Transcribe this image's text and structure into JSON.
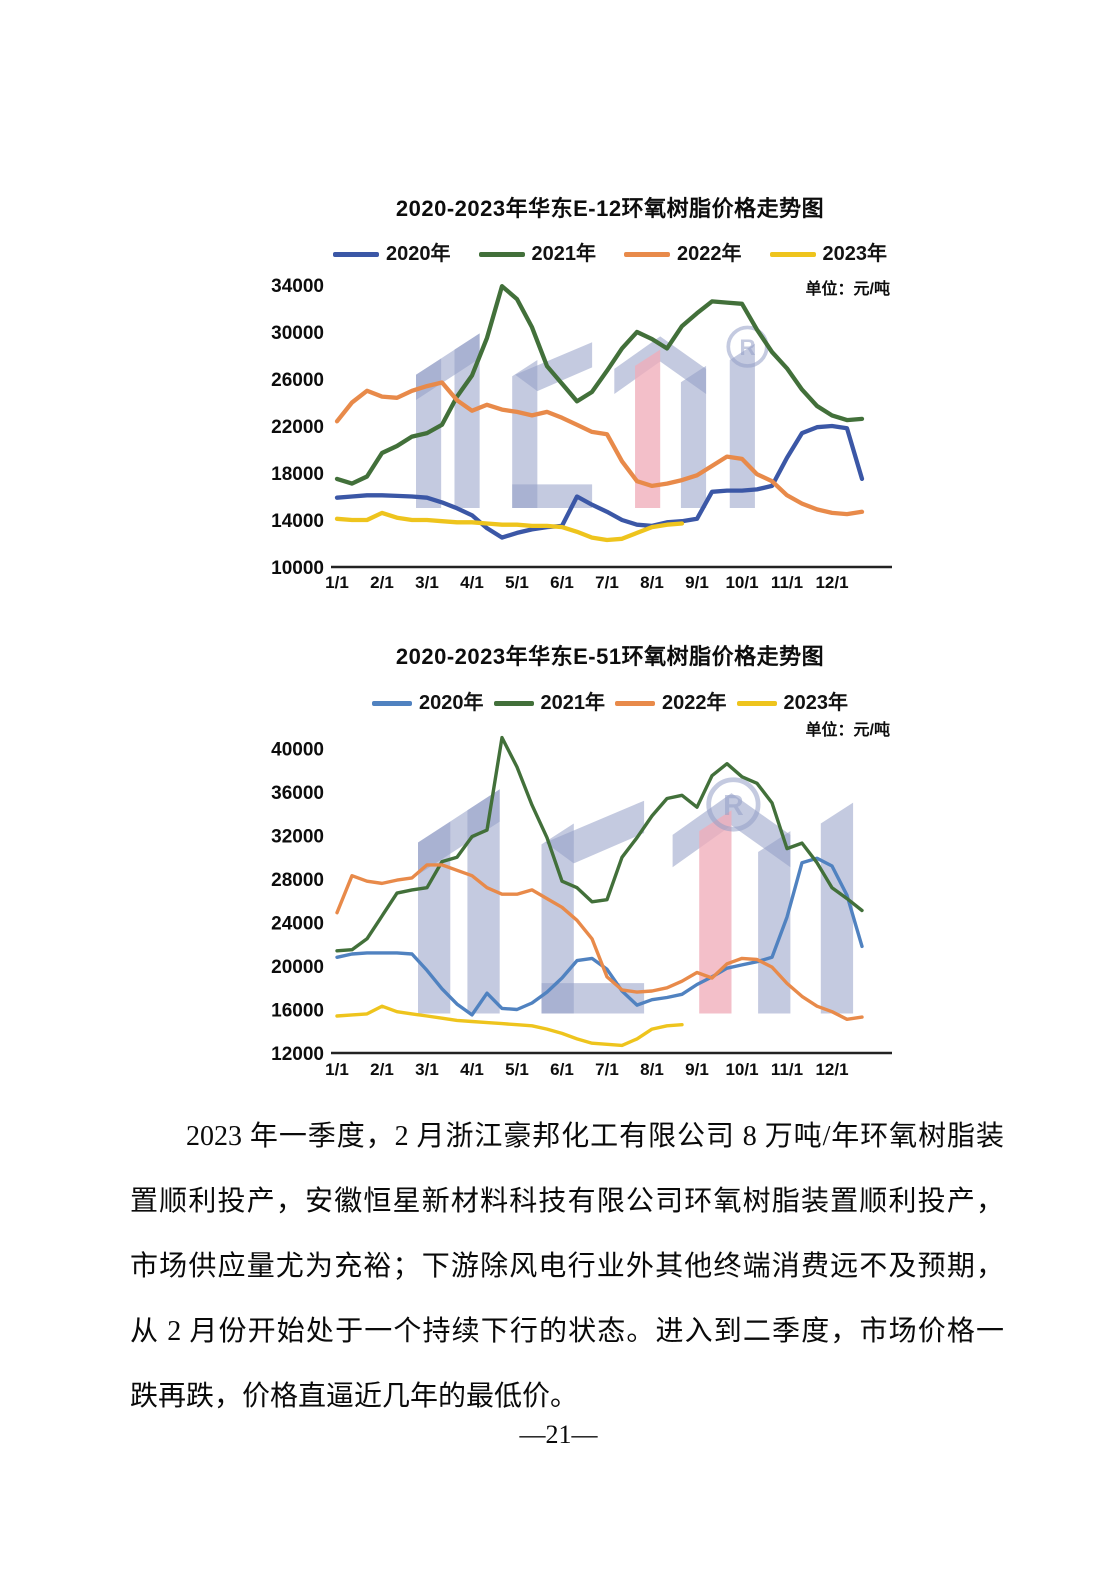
{
  "page": {
    "number_label": "—21—"
  },
  "paragraph": {
    "lines": [
      "2023 年一季度，2 月浙江豪邦化工有限公司 8 万吨/年环氧树脂装",
      "置顺利投产，安徽恒星新材料科技有限公司环氧树脂装置顺利投产，",
      "市场供应量尤为充裕；下游除风电行业外其他终端消费远不及预期，",
      "从 2 月份开始处于一个持续下行的状态。进入到二季度，市场价格一",
      "跌再跌，价格直逼近几年的最低价。"
    ]
  },
  "watermark": {
    "registered_mark": "®"
  },
  "chart_data": [
    {
      "type": "line",
      "title": "2020-2023年华东E-12环氧树脂价格走势图",
      "unit_label": "单位：元/吨",
      "legend_position": "top",
      "grid": false,
      "x_tick_labels": [
        "1/1",
        "2/1",
        "3/1",
        "4/1",
        "5/1",
        "6/1",
        "7/1",
        "8/1",
        "9/1",
        "10/1",
        "11/1",
        "12/1"
      ],
      "y_ticks": [
        10000,
        14000,
        18000,
        22000,
        26000,
        30000,
        34000
      ],
      "ylim": [
        10000,
        35200
      ],
      "points_per_month": 3,
      "series": [
        {
          "name": "2020年",
          "color": "#3b57a6",
          "values": [
            15900,
            16000,
            16100,
            16100,
            16050,
            16000,
            15900,
            15500,
            15000,
            14400,
            13300,
            12500,
            12900,
            13200,
            13400,
            13500,
            16000,
            15300,
            14700,
            14000,
            13600,
            13500,
            13800,
            13900,
            14100,
            16400,
            16500,
            16500,
            16600,
            16900,
            19300,
            21400,
            21900,
            22000,
            21800,
            17500
          ]
        },
        {
          "name": "2021年",
          "color": "#42703a",
          "values": [
            17500,
            17100,
            17700,
            19700,
            20300,
            21100,
            21400,
            22100,
            24500,
            26300,
            29500,
            33900,
            32800,
            30400,
            27100,
            25600,
            24100,
            24900,
            26700,
            28600,
            30000,
            29400,
            28600,
            30500,
            31600,
            32600,
            32500,
            32400,
            30200,
            28300,
            26900,
            25100,
            23700,
            22900,
            22500,
            22600
          ]
        },
        {
          "name": "2022年",
          "color": "#e88a4a",
          "values": [
            22400,
            24000,
            25000,
            24500,
            24400,
            25000,
            25400,
            25700,
            24200,
            23300,
            23800,
            23400,
            23200,
            22900,
            23200,
            22700,
            22100,
            21500,
            21300,
            19000,
            17300,
            16900,
            17100,
            17400,
            17800,
            18600,
            19400,
            19200,
            17900,
            17300,
            16100,
            15400,
            14900,
            14600,
            14500,
            14700
          ]
        },
        {
          "name": "2023年",
          "color": "#eec41d",
          "values": [
            14100,
            14000,
            14000,
            14600,
            14200,
            14000,
            14000,
            13900,
            13800,
            13800,
            13700,
            13600,
            13600,
            13500,
            13500,
            13400,
            13000,
            12500,
            12300,
            12400,
            12900,
            13400,
            13600,
            13700
          ]
        }
      ]
    },
    {
      "type": "line",
      "title": "2020-2023年华东E-51环氧树脂价格走势图",
      "unit_label": "单位：元/吨",
      "legend_position": "top",
      "grid": false,
      "x_tick_labels": [
        "1/1",
        "2/1",
        "3/1",
        "4/1",
        "5/1",
        "6/1",
        "7/1",
        "8/1",
        "9/1",
        "10/1",
        "11/1",
        "12/1"
      ],
      "y_ticks": [
        12000,
        16000,
        20000,
        24000,
        28000,
        32000,
        36000,
        40000
      ],
      "ylim": [
        12000,
        41800
      ],
      "points_per_month": 3,
      "series": [
        {
          "name": "2020年",
          "color": "#5082c0",
          "values": [
            20800,
            21100,
            21200,
            21200,
            21200,
            21100,
            19600,
            17900,
            16500,
            15500,
            17500,
            16100,
            16000,
            16600,
            17600,
            18900,
            20500,
            20700,
            19700,
            17700,
            16400,
            16900,
            17100,
            17400,
            18300,
            19000,
            19800,
            20100,
            20400,
            20800,
            24500,
            29500,
            29900,
            29200,
            26500,
            21800
          ]
        },
        {
          "name": "2021年",
          "color": "#42703a",
          "values": [
            21400,
            21500,
            22500,
            24600,
            26700,
            27000,
            27200,
            29600,
            30000,
            31900,
            32500,
            41000,
            38300,
            34800,
            31800,
            27800,
            27200,
            25900,
            26100,
            30000,
            31800,
            33800,
            35400,
            35700,
            34600,
            37500,
            38600,
            37400,
            36800,
            35000,
            30800,
            31300,
            29500,
            27200,
            26200,
            25100
          ]
        },
        {
          "name": "2022年",
          "color": "#e88a4a",
          "values": [
            24900,
            28300,
            27800,
            27600,
            27900,
            28100,
            29300,
            29300,
            28800,
            28300,
            27200,
            26600,
            26600,
            27000,
            26200,
            25400,
            24200,
            22500,
            19000,
            17800,
            17600,
            17700,
            18000,
            18600,
            19400,
            18900,
            20200,
            20700,
            20600,
            19900,
            18400,
            17200,
            16300,
            15800,
            15100,
            15300
          ]
        },
        {
          "name": "2023年",
          "color": "#eec41d",
          "values": [
            15400,
            15500,
            15600,
            16300,
            15800,
            15600,
            15400,
            15200,
            15000,
            14900,
            14800,
            14700,
            14600,
            14500,
            14200,
            13800,
            13300,
            12900,
            12800,
            12700,
            13300,
            14200,
            14500,
            14600
          ]
        }
      ]
    }
  ]
}
